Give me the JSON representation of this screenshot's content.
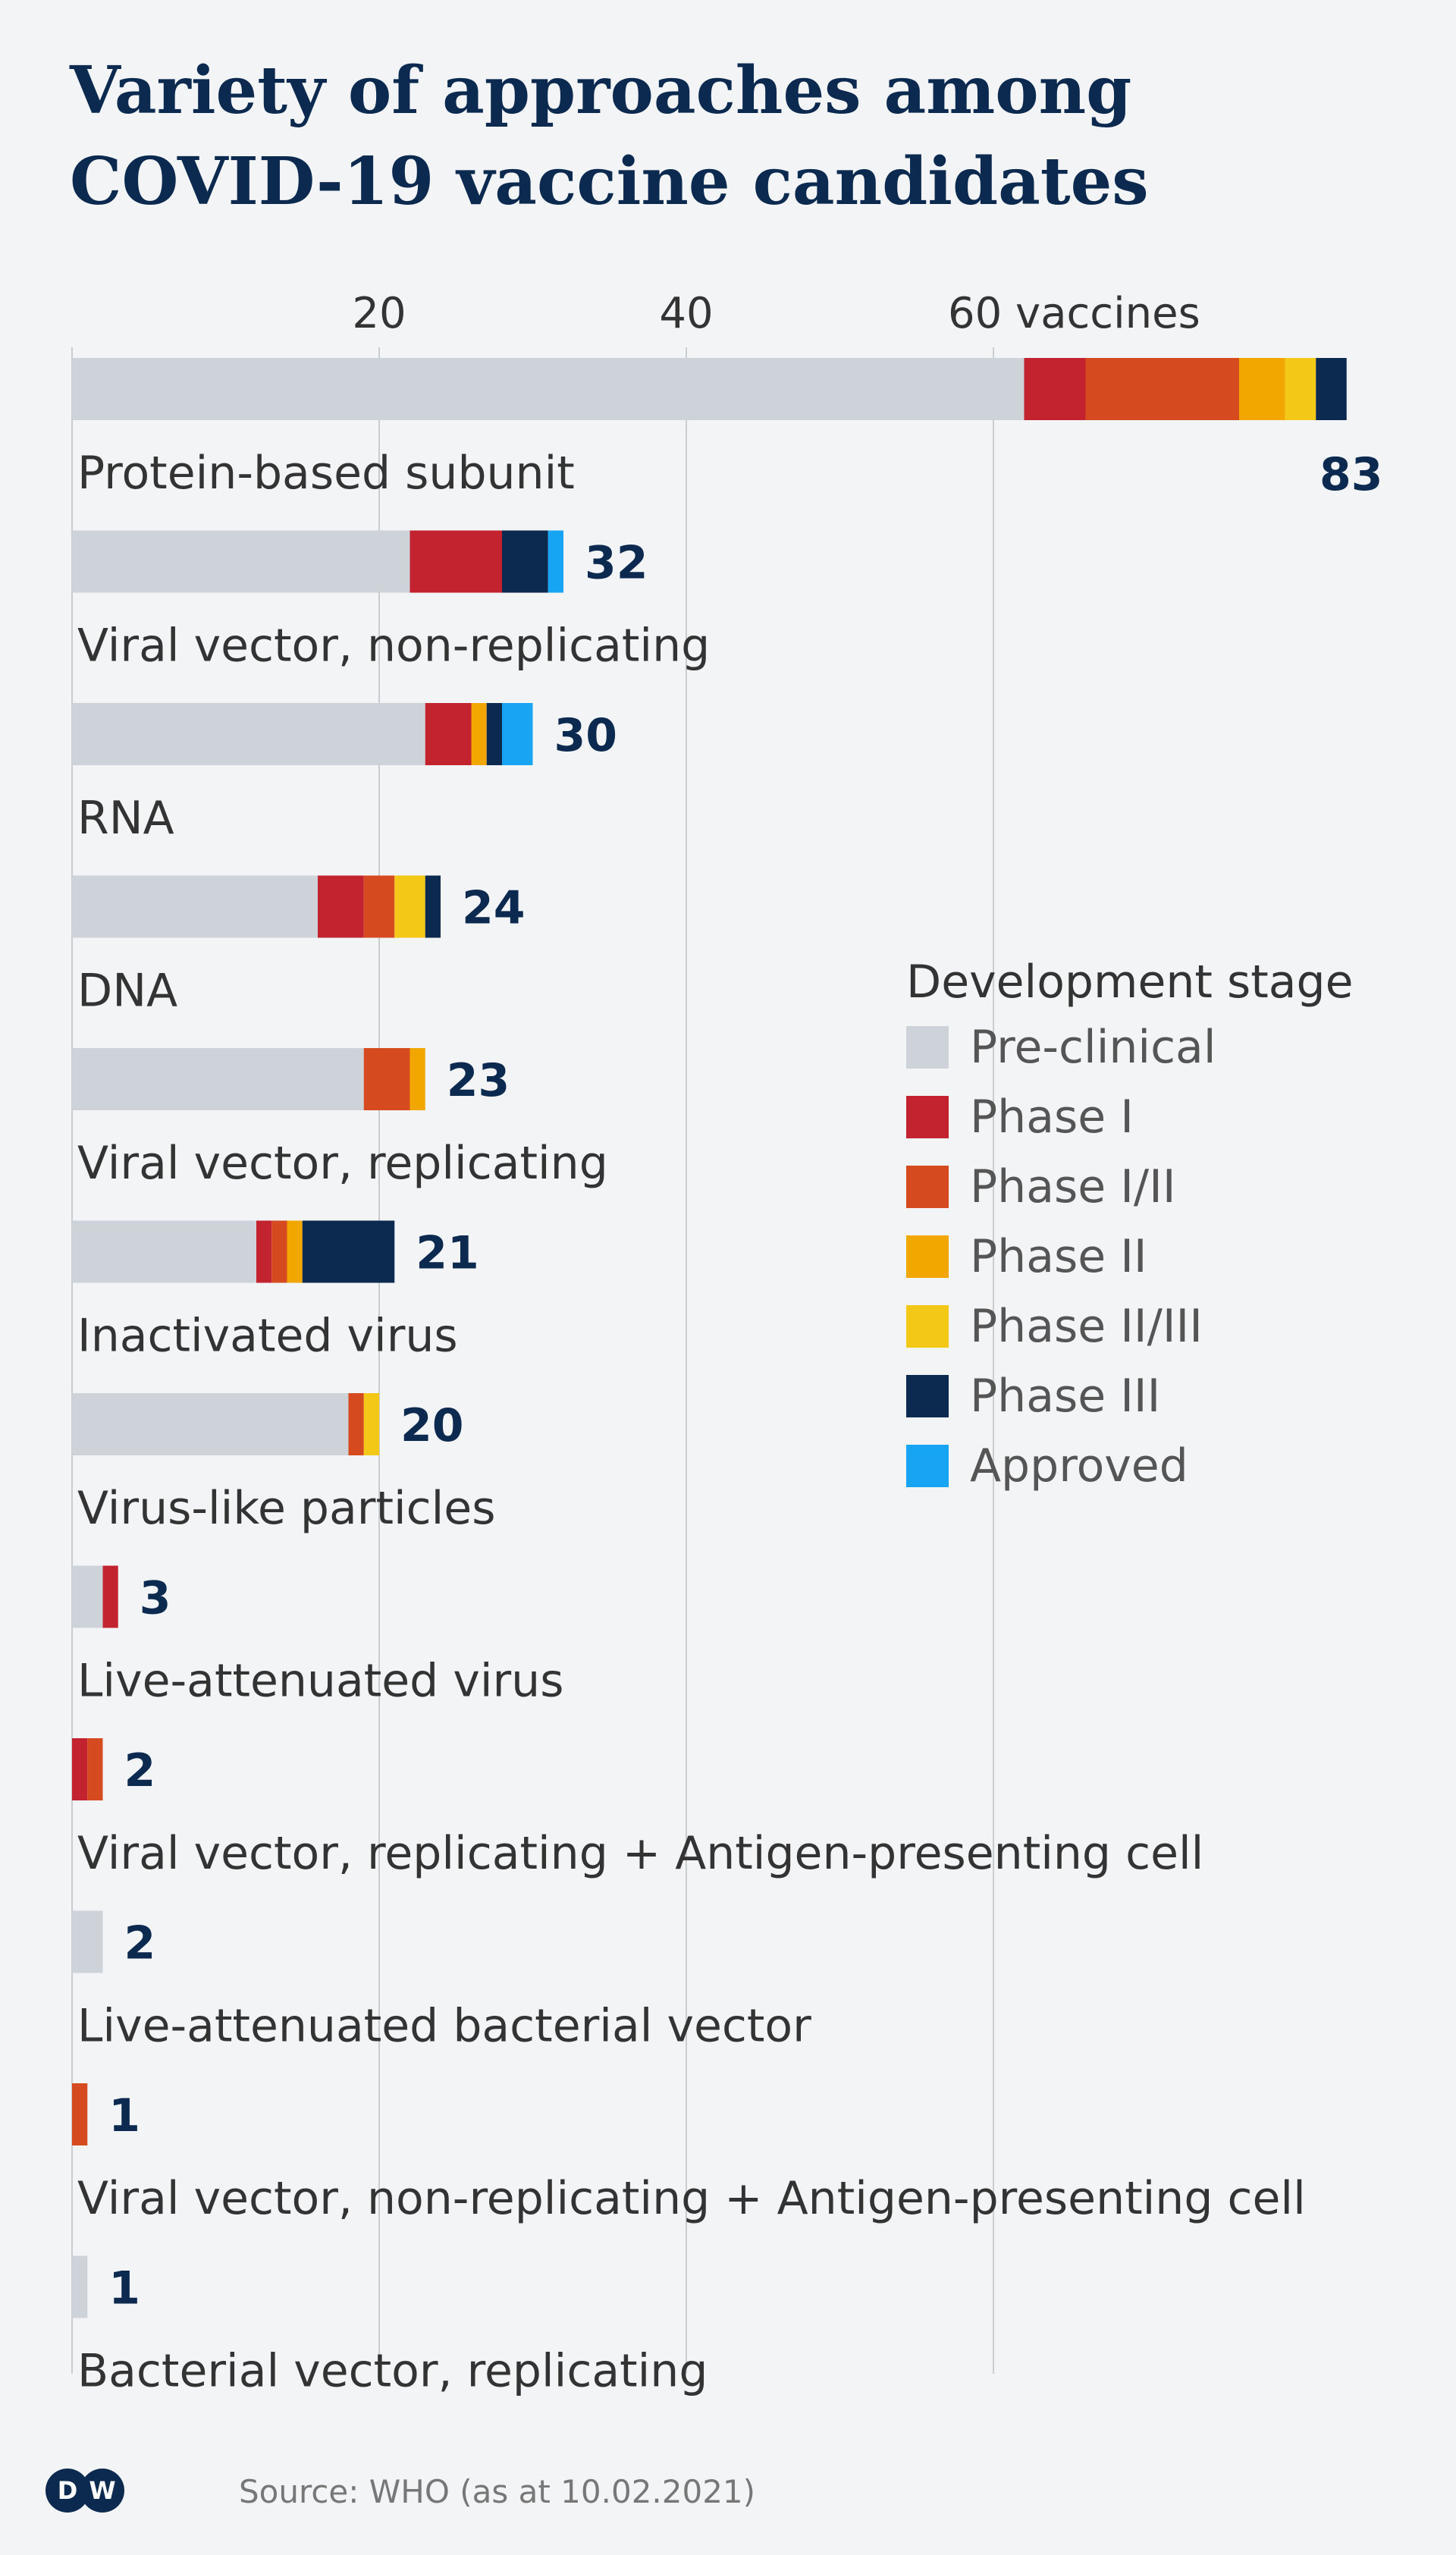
{
  "title": {
    "line1": "Variety of approaches among",
    "line2": "COVID-19 vaccine candidates"
  },
  "chart_data": {
    "type": "bar",
    "orientation": "horizontal",
    "stacked": true,
    "xaxis": {
      "range": [
        0,
        83
      ],
      "ticks": [
        20,
        40,
        60
      ],
      "tick_labels": [
        "20",
        "40",
        "60 vaccines"
      ],
      "position": "top",
      "grid": true
    },
    "categories": [
      "Protein-based subunit",
      "Viral vector, non-replicating",
      "RNA",
      "DNA",
      "Viral vector, replicating",
      "Inactivated virus",
      "Virus-like particles",
      "Live-attenuated virus",
      "Viral vector, replicating + Antigen-presenting cell",
      "Live-attenuated bacterial vector",
      "Viral vector, non-replicating + Antigen-presenting cell",
      "Bacterial vector, replicating"
    ],
    "totals": [
      83,
      32,
      30,
      24,
      23,
      21,
      20,
      3,
      2,
      2,
      1,
      1
    ],
    "series": [
      {
        "name": "Pre-clinical",
        "color": "#cdd3d9",
        "values": [
          62,
          22,
          23,
          16,
          19,
          12,
          18,
          2,
          0,
          2,
          0,
          1
        ]
      },
      {
        "name": "Phase I",
        "color": "#c3232f",
        "values": [
          4,
          6,
          3,
          3,
          0,
          1,
          0,
          1,
          1,
          0,
          0,
          0
        ]
      },
      {
        "name": "Phase I/II",
        "color": "#d54a1f",
        "values": [
          10,
          0,
          0,
          2,
          3,
          1,
          1,
          0,
          1,
          0,
          1,
          0
        ]
      },
      {
        "name": "Phase II",
        "color": "#f1a600",
        "values": [
          3,
          0,
          1,
          0,
          1,
          1,
          0,
          0,
          0,
          0,
          0,
          0
        ]
      },
      {
        "name": "Phase II/III",
        "color": "#f4c816",
        "values": [
          2,
          0,
          0,
          2,
          0,
          0,
          1,
          0,
          0,
          0,
          0,
          0
        ]
      },
      {
        "name": "Phase III",
        "color": "#0c2a4f",
        "values": [
          2,
          3,
          1,
          1,
          0,
          6,
          0,
          0,
          0,
          0,
          0,
          0
        ]
      },
      {
        "name": "Approved",
        "color": "#16a4f3",
        "values": [
          0,
          1,
          2,
          0,
          0,
          0,
          0,
          0,
          0,
          0,
          0,
          0
        ]
      }
    ],
    "legend": {
      "title": "Development stage",
      "placement": "right"
    }
  },
  "footer": {
    "logo_text": "DW",
    "source": "Source: WHO (as at 10.02.2021)"
  },
  "colors": {
    "title": "#0c2a4f",
    "total_label": "#0c2a4f",
    "background": "#f2f4f6",
    "grid": "#c8cdd2"
  }
}
